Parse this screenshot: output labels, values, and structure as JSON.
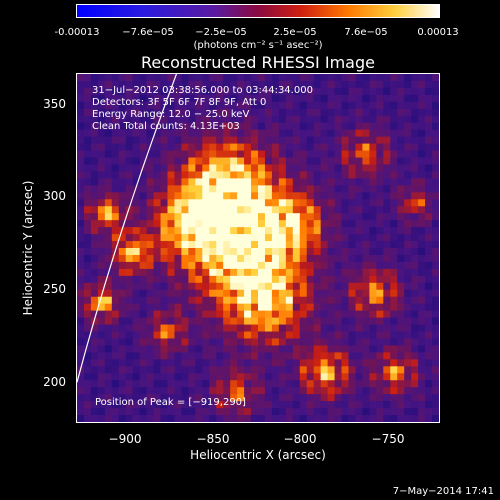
{
  "colorbar": {
    "ticks": [
      "-0.00013",
      "−7.6e−05",
      "−2.5e−05",
      "2.5e−05",
      "7.6e−05",
      "0.00013"
    ],
    "unit": "(photons cm⁻² s⁻¹ asec⁻²)"
  },
  "plot": {
    "title": "Reconstructed RHESSI Image",
    "info": [
      "31−Jul−2012 03:38:56.000 to 03:44:34.000",
      "Detectors: 3F 5F 6F 7F 8F 9F, Att 0",
      "Energy Range: 12.0 − 25.0 keV",
      "Clean     Total counts: 4.13E+03"
    ],
    "peak_text": "Position of Peak = [−919,290]",
    "x_ticks": [
      "−900",
      "−850",
      "−800",
      "−750"
    ],
    "y_ticks": [
      "200",
      "250",
      "300",
      "350"
    ],
    "xlabel": "Heliocentric X (arcsec)",
    "ylabel": "Heliocentric Y (arcsec)"
  },
  "footer": {
    "timestamp": "7−May−2014 17:41"
  },
  "colors": {
    "background": "#000000",
    "foreground": "#ffffff"
  },
  "colormap": "blue-purple-red-yellow-white"
}
